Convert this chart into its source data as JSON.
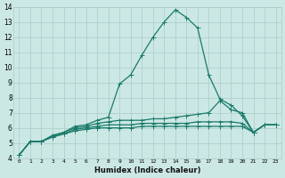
{
  "xlabel": "Humidex (Indice chaleur)",
  "ylabel": "",
  "xlim": [
    -0.5,
    23.5
  ],
  "ylim": [
    4,
    14
  ],
  "yticks": [
    4,
    5,
    6,
    7,
    8,
    9,
    10,
    11,
    12,
    13,
    14
  ],
  "xticks": [
    0,
    1,
    2,
    3,
    4,
    5,
    6,
    7,
    8,
    9,
    10,
    11,
    12,
    13,
    14,
    15,
    16,
    17,
    18,
    19,
    20,
    21,
    22,
    23
  ],
  "bg_color": "#cce8e4",
  "grid_color": "#aaccca",
  "line_color": "#1a7a6a",
  "line1_y": [
    4.2,
    5.1,
    5.1,
    5.5,
    5.7,
    6.1,
    6.2,
    6.5,
    6.7,
    8.9,
    9.5,
    10.8,
    12.0,
    13.0,
    13.8,
    13.3,
    12.6,
    9.5,
    7.9,
    7.5,
    6.8,
    5.7,
    6.2,
    6.2
  ],
  "line2_y": [
    4.2,
    5.1,
    5.1,
    5.5,
    5.7,
    6.0,
    6.1,
    6.3,
    6.4,
    6.5,
    6.5,
    6.5,
    6.6,
    6.6,
    6.7,
    6.8,
    6.9,
    7.0,
    7.8,
    7.2,
    7.0,
    5.7,
    6.2,
    6.2
  ],
  "line3_y": [
    4.2,
    5.1,
    5.1,
    5.4,
    5.6,
    5.9,
    6.0,
    6.1,
    6.2,
    6.2,
    6.2,
    6.3,
    6.3,
    6.3,
    6.3,
    6.3,
    6.4,
    6.4,
    6.4,
    6.4,
    6.3,
    5.7,
    6.2,
    6.2
  ],
  "line4_y": [
    4.2,
    5.1,
    5.1,
    5.4,
    5.6,
    5.8,
    5.9,
    6.0,
    6.0,
    6.0,
    6.0,
    6.1,
    6.1,
    6.1,
    6.1,
    6.1,
    6.1,
    6.1,
    6.1,
    6.1,
    6.1,
    5.7,
    6.2,
    6.2
  ]
}
